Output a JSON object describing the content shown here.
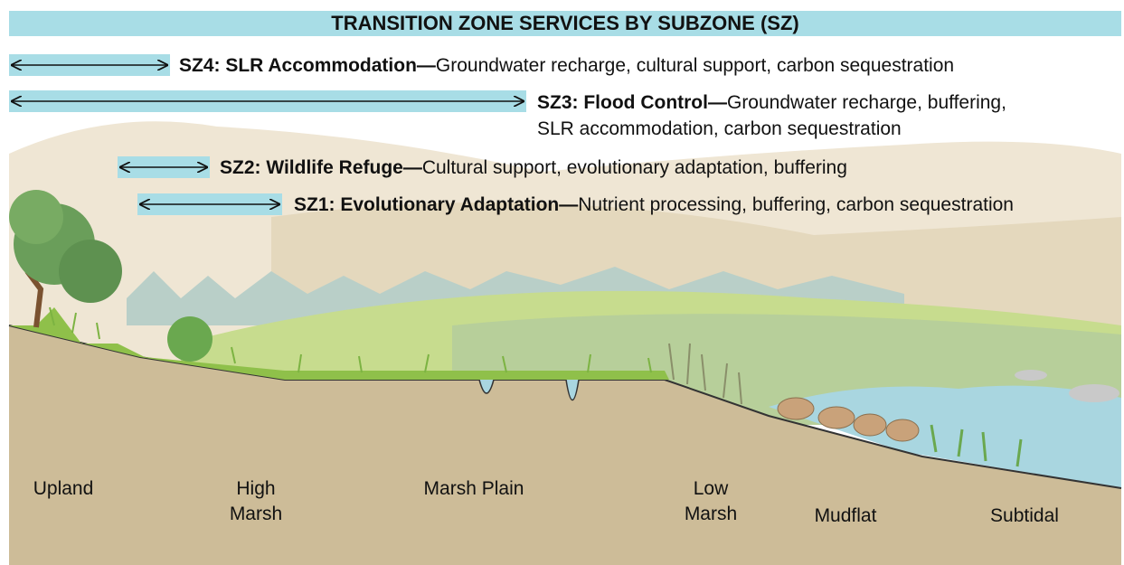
{
  "title": "TRANSITION ZONE SERVICES BY SUBZONE (SZ)",
  "subzones": [
    {
      "label": "SZ4: SLR Accommodation—",
      "services": [
        "Groundwater recharge, cultural support, carbon sequestration"
      ]
    },
    {
      "label": "SZ3: Flood Control—",
      "services": [
        "Groundwater recharge, buffering,",
        "SLR accommodation, carbon sequestration"
      ]
    },
    {
      "label": "SZ2: Wildlife Refuge—",
      "services": [
        "Cultural support, evolutionary adaptation, buffering"
      ]
    },
    {
      "label": "SZ1: Evolutionary Adaptation—",
      "services": [
        "Nutrient processing, buffering, carbon sequestration"
      ]
    }
  ],
  "zones": [
    {
      "lines": [
        "Upland"
      ]
    },
    {
      "lines": [
        "High",
        "Marsh"
      ]
    },
    {
      "lines": [
        "Marsh Plain"
      ]
    },
    {
      "lines": [
        "Low",
        "Marsh"
      ]
    },
    {
      "lines": [
        "Mudflat"
      ]
    },
    {
      "lines": [
        "Subtidal"
      ]
    }
  ]
}
